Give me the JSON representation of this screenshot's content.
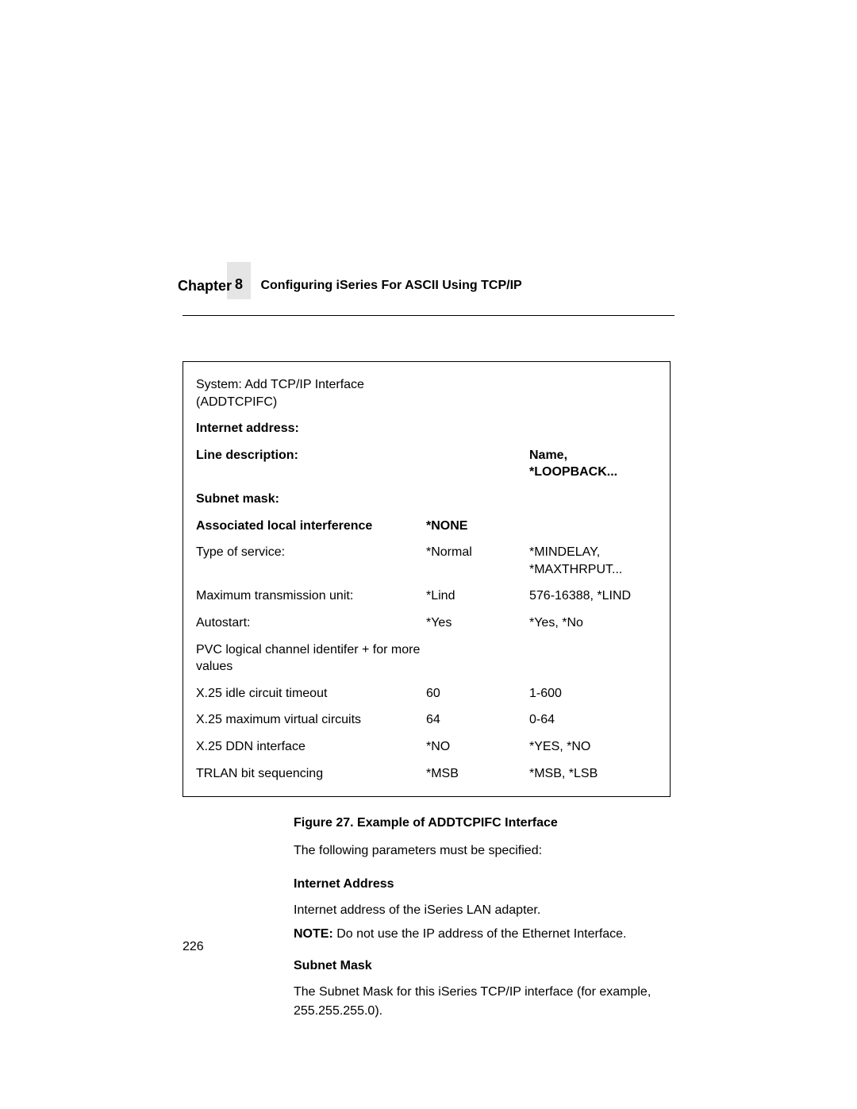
{
  "header": {
    "chapter_label": "Chapter",
    "chapter_number": "8",
    "chapter_title": "Configuring iSeries For ASCII Using TCP/IP"
  },
  "table": {
    "rows": [
      {
        "c1": "System: Add TCP/IP Interface (ADDTCPIFC)",
        "c2": "",
        "c3": "",
        "bold": false
      },
      {
        "c1": "Internet address:",
        "c2": "",
        "c3": "",
        "bold": true
      },
      {
        "c1": "Line description:",
        "c2": "",
        "c3": "Name, *LOOPBACK...",
        "bold": true
      },
      {
        "c1": "Subnet mask:",
        "c2": "",
        "c3": "",
        "bold": true
      },
      {
        "c1": "Associated local interference",
        "c2": "*NONE",
        "c3": "",
        "bold": true
      },
      {
        "c1": "Type of service:",
        "c2": "*Normal",
        "c3": "*MINDELAY, *MAXTHRPUT...",
        "bold": false
      },
      {
        "c1": "Maximum transmission unit:",
        "c2": "*Lind",
        "c3": "576-16388, *LIND",
        "bold": false
      },
      {
        "c1": "Autostart:",
        "c2": "*Yes",
        "c3": "*Yes, *No",
        "bold": false
      },
      {
        "c1": "PVC logical channel identifer + for more values",
        "c2": "",
        "c3": "",
        "bold": false
      },
      {
        "c1": "X.25 idle circuit timeout",
        "c2": "60",
        "c3": "1-600",
        "bold": false
      },
      {
        "c1": "X.25 maximum virtual circuits",
        "c2": "64",
        "c3": "0-64",
        "bold": false
      },
      {
        "c1": "X.25 DDN interface",
        "c2": "*NO",
        "c3": "*YES, *NO",
        "bold": false
      },
      {
        "c1": "TRLAN bit sequencing",
        "c2": "*MSB",
        "c3": "*MSB, *LSB",
        "bold": false
      }
    ]
  },
  "figure_caption": "Figure 27. Example of ADDTCPIFC Interface",
  "intro": "The following parameters must be specified:",
  "sections": [
    {
      "heading": "Internet Address",
      "body": "Internet address of the iSeries LAN adapter.",
      "note_label": "NOTE:",
      "note_body": "Do not use the IP address of the Ethernet Interface."
    },
    {
      "heading": "Subnet Mask",
      "body": "The Subnet Mask for this iSeries TCP/IP interface (for example, 255.255.255.0).",
      "note_label": "",
      "note_body": ""
    }
  ],
  "page_number": "226"
}
